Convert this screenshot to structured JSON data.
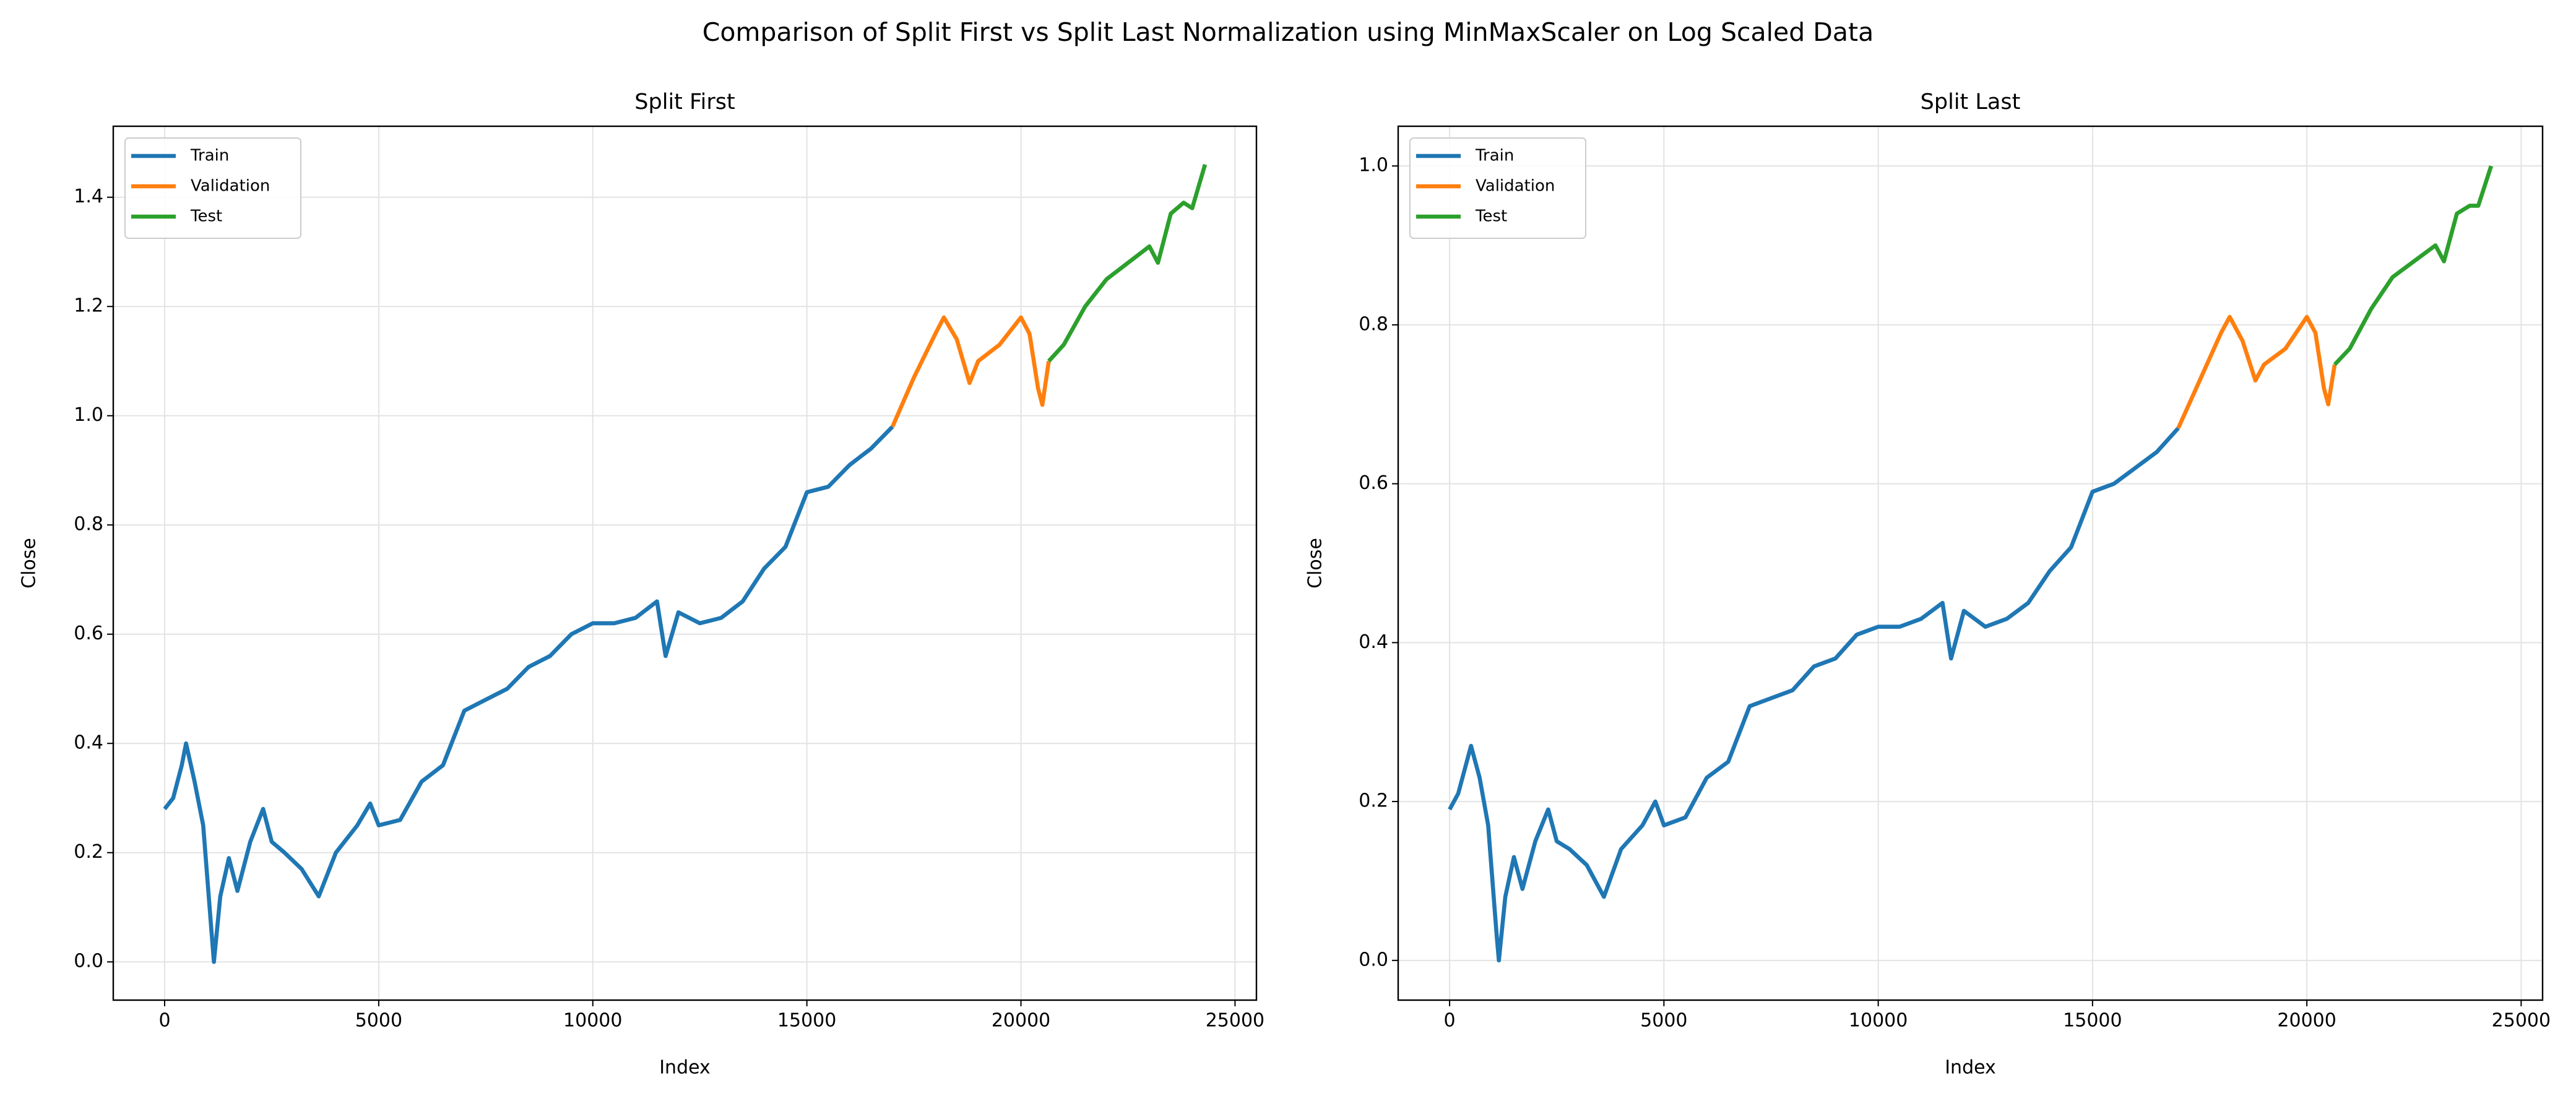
{
  "title": "Comparison of Split First vs Split Last Normalization using MinMaxScaler on Log Scaled Data",
  "chart_data": [
    {
      "type": "line",
      "title": "Split First",
      "xlabel": "Index",
      "ylabel": "Close",
      "xlim": [
        -1200,
        25500
      ],
      "ylim": [
        -0.07,
        1.53
      ],
      "xticks": [
        0,
        5000,
        10000,
        15000,
        20000,
        25000
      ],
      "yticks": [
        {
          "value": 0,
          "label": "0.0"
        },
        0.2,
        0.4,
        0.6,
        0.8,
        {
          "value": 1,
          "label": "1.0"
        },
        1.2,
        1.4
      ],
      "grid": true,
      "legend": "upper left",
      "series": [
        {
          "name": "Train",
          "color": "#1f77b4",
          "x": [
            0,
            200,
            400,
            500,
            700,
            900,
            1100,
            1150,
            1300,
            1500,
            1700,
            2000,
            2300,
            2500,
            2800,
            3200,
            3600,
            4000,
            4500,
            4800,
            5000,
            5500,
            6000,
            6500,
            7000,
            7500,
            8000,
            8500,
            9000,
            9500,
            10000,
            10500,
            11000,
            11500,
            11700,
            12000,
            12500,
            13000,
            13500,
            14000,
            14500,
            15000,
            15500,
            16000,
            16500,
            17000
          ],
          "values": [
            0.28,
            0.3,
            0.36,
            0.4,
            0.33,
            0.25,
            0.05,
            0.0,
            0.12,
            0.19,
            0.13,
            0.22,
            0.28,
            0.22,
            0.2,
            0.17,
            0.12,
            0.2,
            0.25,
            0.29,
            0.25,
            0.26,
            0.33,
            0.36,
            0.46,
            0.48,
            0.5,
            0.54,
            0.56,
            0.6,
            0.62,
            0.62,
            0.63,
            0.66,
            0.56,
            0.64,
            0.62,
            0.63,
            0.66,
            0.72,
            0.76,
            0.86,
            0.87,
            0.91,
            0.94,
            0.98
          ]
        },
        {
          "name": "Validation",
          "color": "#ff7f0e",
          "x": [
            17000,
            17500,
            18000,
            18200,
            18500,
            18800,
            19000,
            19500,
            20000,
            20200,
            20400,
            20500,
            20650
          ],
          "values": [
            0.98,
            1.07,
            1.15,
            1.18,
            1.14,
            1.06,
            1.1,
            1.13,
            1.18,
            1.15,
            1.05,
            1.02,
            1.1
          ]
        },
        {
          "name": "Test",
          "color": "#2ca02c",
          "x": [
            20650,
            21000,
            21500,
            22000,
            22500,
            23000,
            23200,
            23500,
            23800,
            24000,
            24300
          ],
          "values": [
            1.1,
            1.13,
            1.2,
            1.25,
            1.28,
            1.31,
            1.28,
            1.37,
            1.39,
            1.38,
            1.46
          ]
        }
      ]
    },
    {
      "type": "line",
      "title": "Split Last",
      "xlabel": "Index",
      "ylabel": "Close",
      "xlim": [
        -1200,
        25500
      ],
      "ylim": [
        -0.05,
        1.05
      ],
      "xticks": [
        0,
        5000,
        10000,
        15000,
        20000,
        25000
      ],
      "yticks": [
        {
          "value": 0,
          "label": "0.0"
        },
        0.2,
        0.4,
        0.6,
        0.8,
        {
          "value": 1,
          "label": "1.0"
        }
      ],
      "grid": true,
      "legend": "upper left",
      "series": [
        {
          "name": "Train",
          "color": "#1f77b4",
          "x": [
            0,
            200,
            400,
            500,
            700,
            900,
            1100,
            1150,
            1300,
            1500,
            1700,
            2000,
            2300,
            2500,
            2800,
            3200,
            3600,
            4000,
            4500,
            4800,
            5000,
            5500,
            6000,
            6500,
            7000,
            7500,
            8000,
            8500,
            9000,
            9500,
            10000,
            10500,
            11000,
            11500,
            11700,
            12000,
            12500,
            13000,
            13500,
            14000,
            14500,
            15000,
            15500,
            16000,
            16500,
            17000
          ],
          "values": [
            0.19,
            0.21,
            0.25,
            0.27,
            0.23,
            0.17,
            0.03,
            0.0,
            0.08,
            0.13,
            0.09,
            0.15,
            0.19,
            0.15,
            0.14,
            0.12,
            0.08,
            0.14,
            0.17,
            0.2,
            0.17,
            0.18,
            0.23,
            0.25,
            0.32,
            0.33,
            0.34,
            0.37,
            0.38,
            0.41,
            0.42,
            0.42,
            0.43,
            0.45,
            0.38,
            0.44,
            0.42,
            0.43,
            0.45,
            0.49,
            0.52,
            0.59,
            0.6,
            0.62,
            0.64,
            0.67
          ]
        },
        {
          "name": "Validation",
          "color": "#ff7f0e",
          "x": [
            17000,
            17500,
            18000,
            18200,
            18500,
            18800,
            19000,
            19500,
            20000,
            20200,
            20400,
            20500,
            20650
          ],
          "values": [
            0.67,
            0.73,
            0.79,
            0.81,
            0.78,
            0.73,
            0.75,
            0.77,
            0.81,
            0.79,
            0.72,
            0.7,
            0.75
          ]
        },
        {
          "name": "Test",
          "color": "#2ca02c",
          "x": [
            20650,
            21000,
            21500,
            22000,
            22500,
            23000,
            23200,
            23500,
            23800,
            24000,
            24300
          ],
          "values": [
            0.75,
            0.77,
            0.82,
            0.86,
            0.88,
            0.9,
            0.88,
            0.94,
            0.95,
            0.95,
            1.0
          ]
        }
      ]
    }
  ]
}
